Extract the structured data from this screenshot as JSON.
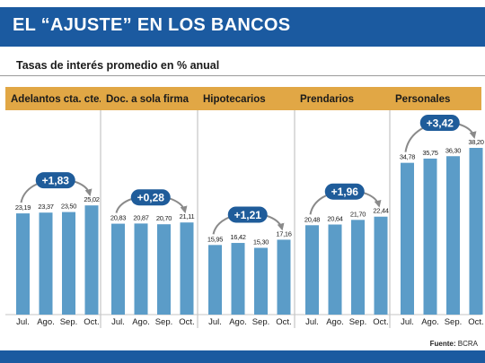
{
  "header": {
    "title": "EL “AJUSTE” EN LOS BANCOS",
    "subtitle": "Tasas de interés promedio en % anual"
  },
  "source": {
    "label": "Fuente:",
    "value": "BCRA"
  },
  "colors": {
    "banner": "#1b5aa0",
    "panel_header": "#e1a745",
    "bar": "#5b9cc8",
    "badge": "#1f5c9a",
    "arrow": "#8a8a8a",
    "bottom_bar": "#1b5aa0"
  },
  "chart_data": {
    "type": "bar",
    "title": "EL “AJUSTE” EN LOS BANCOS",
    "subtitle": "Tasas de interés promedio en % anual",
    "categories": [
      "Jul.",
      "Ago.",
      "Sep.",
      "Oct."
    ],
    "panels": [
      {
        "name": "Adelantos cta. cte.",
        "values": [
          23.19,
          23.37,
          23.5,
          25.02
        ],
        "labels": [
          "23,19",
          "23,37",
          "23,50",
          "25,02"
        ],
        "change": "+1,83"
      },
      {
        "name": "Doc. a sola firma",
        "values": [
          20.83,
          20.87,
          20.7,
          21.11
        ],
        "labels": [
          "20,83",
          "20,87",
          "20,70",
          "21,11"
        ],
        "change": "+0,28"
      },
      {
        "name": "Hipotecarios",
        "values": [
          15.95,
          16.42,
          15.3,
          17.16
        ],
        "labels": [
          "15,95",
          "16,42",
          "15,30",
          "17,16"
        ],
        "change": "+1,21"
      },
      {
        "name": "Prendarios",
        "values": [
          20.48,
          20.64,
          21.7,
          22.44
        ],
        "labels": [
          "20,48",
          "20,64",
          "21,70",
          "22,44"
        ],
        "change": "+1,96"
      },
      {
        "name": "Personales",
        "values": [
          34.78,
          35.75,
          36.3,
          38.2
        ],
        "labels": [
          "34,78",
          "35,75",
          "36,30",
          "38,20"
        ],
        "change": "+3,42"
      }
    ],
    "ylim": [
      0,
      40
    ],
    "grid": false,
    "legend": "none"
  }
}
